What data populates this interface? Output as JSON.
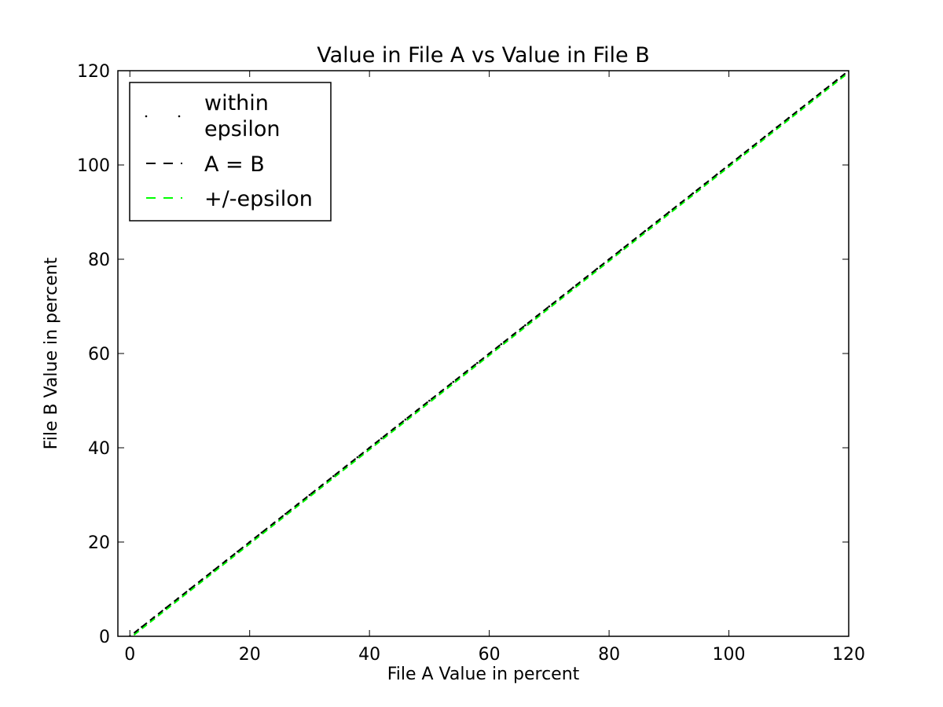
{
  "chart_data": {
    "type": "scatter",
    "title": "Value in File A vs Value in File B",
    "xlabel": "File A Value in percent",
    "ylabel": "File B Value in percent",
    "xlim": [
      -2,
      120
    ],
    "ylim": [
      0,
      120
    ],
    "xticks": [
      0,
      20,
      40,
      60,
      80,
      100,
      120
    ],
    "yticks": [
      0,
      20,
      40,
      60,
      80,
      100,
      120
    ],
    "grid": false,
    "legend_position": "top-left",
    "series": [
      {
        "name": "within epsilon",
        "style": "points",
        "color": "#000000",
        "x": [
          0,
          2,
          4,
          6,
          8,
          10,
          12,
          14,
          16,
          18,
          20,
          22,
          24,
          26,
          28,
          30,
          32,
          34,
          36,
          38,
          40,
          42,
          44,
          46,
          48,
          50,
          52,
          54,
          56,
          58,
          60,
          62,
          64,
          66,
          68,
          70,
          72,
          74,
          76,
          78,
          80,
          82,
          84,
          86,
          88,
          90,
          92,
          94,
          96,
          98,
          100,
          102,
          104,
          106,
          108,
          110,
          112,
          114,
          116,
          118,
          120
        ],
        "y": [
          0,
          2,
          4,
          6,
          8,
          10,
          12,
          14,
          16,
          18,
          20,
          22,
          24,
          26,
          28,
          30,
          32,
          34,
          36,
          38,
          40,
          42,
          44,
          46,
          48,
          50,
          52,
          54,
          56,
          58,
          60,
          62,
          64,
          66,
          68,
          70,
          72,
          74,
          76,
          78,
          80,
          82,
          84,
          86,
          88,
          90,
          92,
          94,
          96,
          98,
          100,
          102,
          104,
          106,
          108,
          110,
          112,
          114,
          116,
          118,
          120
        ]
      },
      {
        "name": "A = B",
        "style": "dashed",
        "color": "#000000",
        "x": [
          -2,
          120
        ],
        "y": [
          -2,
          120
        ]
      },
      {
        "name": "+/-epsilon",
        "style": "dashed",
        "color": "#00ff00",
        "x": [
          -2,
          120
        ],
        "y": [
          -2.4,
          119.6
        ]
      }
    ],
    "legend_labels": {
      "within_line1": "within",
      "within_line2": "epsilon",
      "equal": "A = B",
      "eps": "+/-epsilon"
    }
  }
}
